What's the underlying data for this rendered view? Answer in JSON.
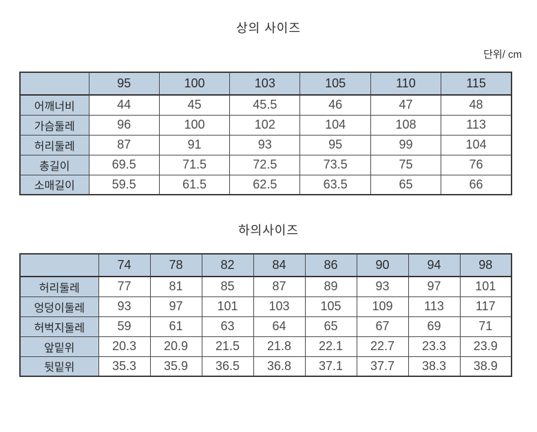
{
  "page": {
    "unit_label": "단위/ cm"
  },
  "colors": {
    "header_bg": "#bfd0e1",
    "border": "#3a3a3a",
    "text": "#2f2f2f",
    "value_text": "#4c4c4c",
    "background": "#ffffff"
  },
  "tables": [
    {
      "title": "상의 사이즈",
      "header": [
        "",
        "95",
        "100",
        "103",
        "105",
        "110",
        "115"
      ],
      "rows": [
        {
          "label": "어깨너비",
          "values": [
            "44",
            "45",
            "45.5",
            "46",
            "47",
            "48"
          ]
        },
        {
          "label": "가슴둘레",
          "values": [
            "96",
            "100",
            "102",
            "104",
            "108",
            "113"
          ]
        },
        {
          "label": "허리둘레",
          "values": [
            "87",
            "91",
            "93",
            "95",
            "99",
            "104"
          ]
        },
        {
          "label": "총길이",
          "values": [
            "69.5",
            "71.5",
            "72.5",
            "73.5",
            "75",
            "76"
          ]
        },
        {
          "label": "소매길이",
          "values": [
            "59.5",
            "61.5",
            "62.5",
            "63.5",
            "65",
            "66"
          ]
        }
      ]
    },
    {
      "title": "하의사이즈",
      "header": [
        "",
        "74",
        "78",
        "82",
        "84",
        "86",
        "90",
        "94",
        "98"
      ],
      "rows": [
        {
          "label": "허리둘레",
          "values": [
            "77",
            "81",
            "85",
            "87",
            "89",
            "93",
            "97",
            "101"
          ]
        },
        {
          "label": "엉덩이둘레",
          "values": [
            "93",
            "97",
            "101",
            "103",
            "105",
            "109",
            "113",
            "117"
          ]
        },
        {
          "label": "허벅지둘레",
          "values": [
            "59",
            "61",
            "63",
            "64",
            "65",
            "67",
            "69",
            "71"
          ]
        },
        {
          "label": "앞밑위",
          "values": [
            "20.3",
            "20.9",
            "21.5",
            "21.8",
            "22.1",
            "22.7",
            "23.3",
            "23.9"
          ]
        },
        {
          "label": "뒷밑위",
          "values": [
            "35.3",
            "35.9",
            "36.5",
            "36.8",
            "37.1",
            "37.7",
            "38.3",
            "38.9"
          ]
        }
      ]
    }
  ]
}
